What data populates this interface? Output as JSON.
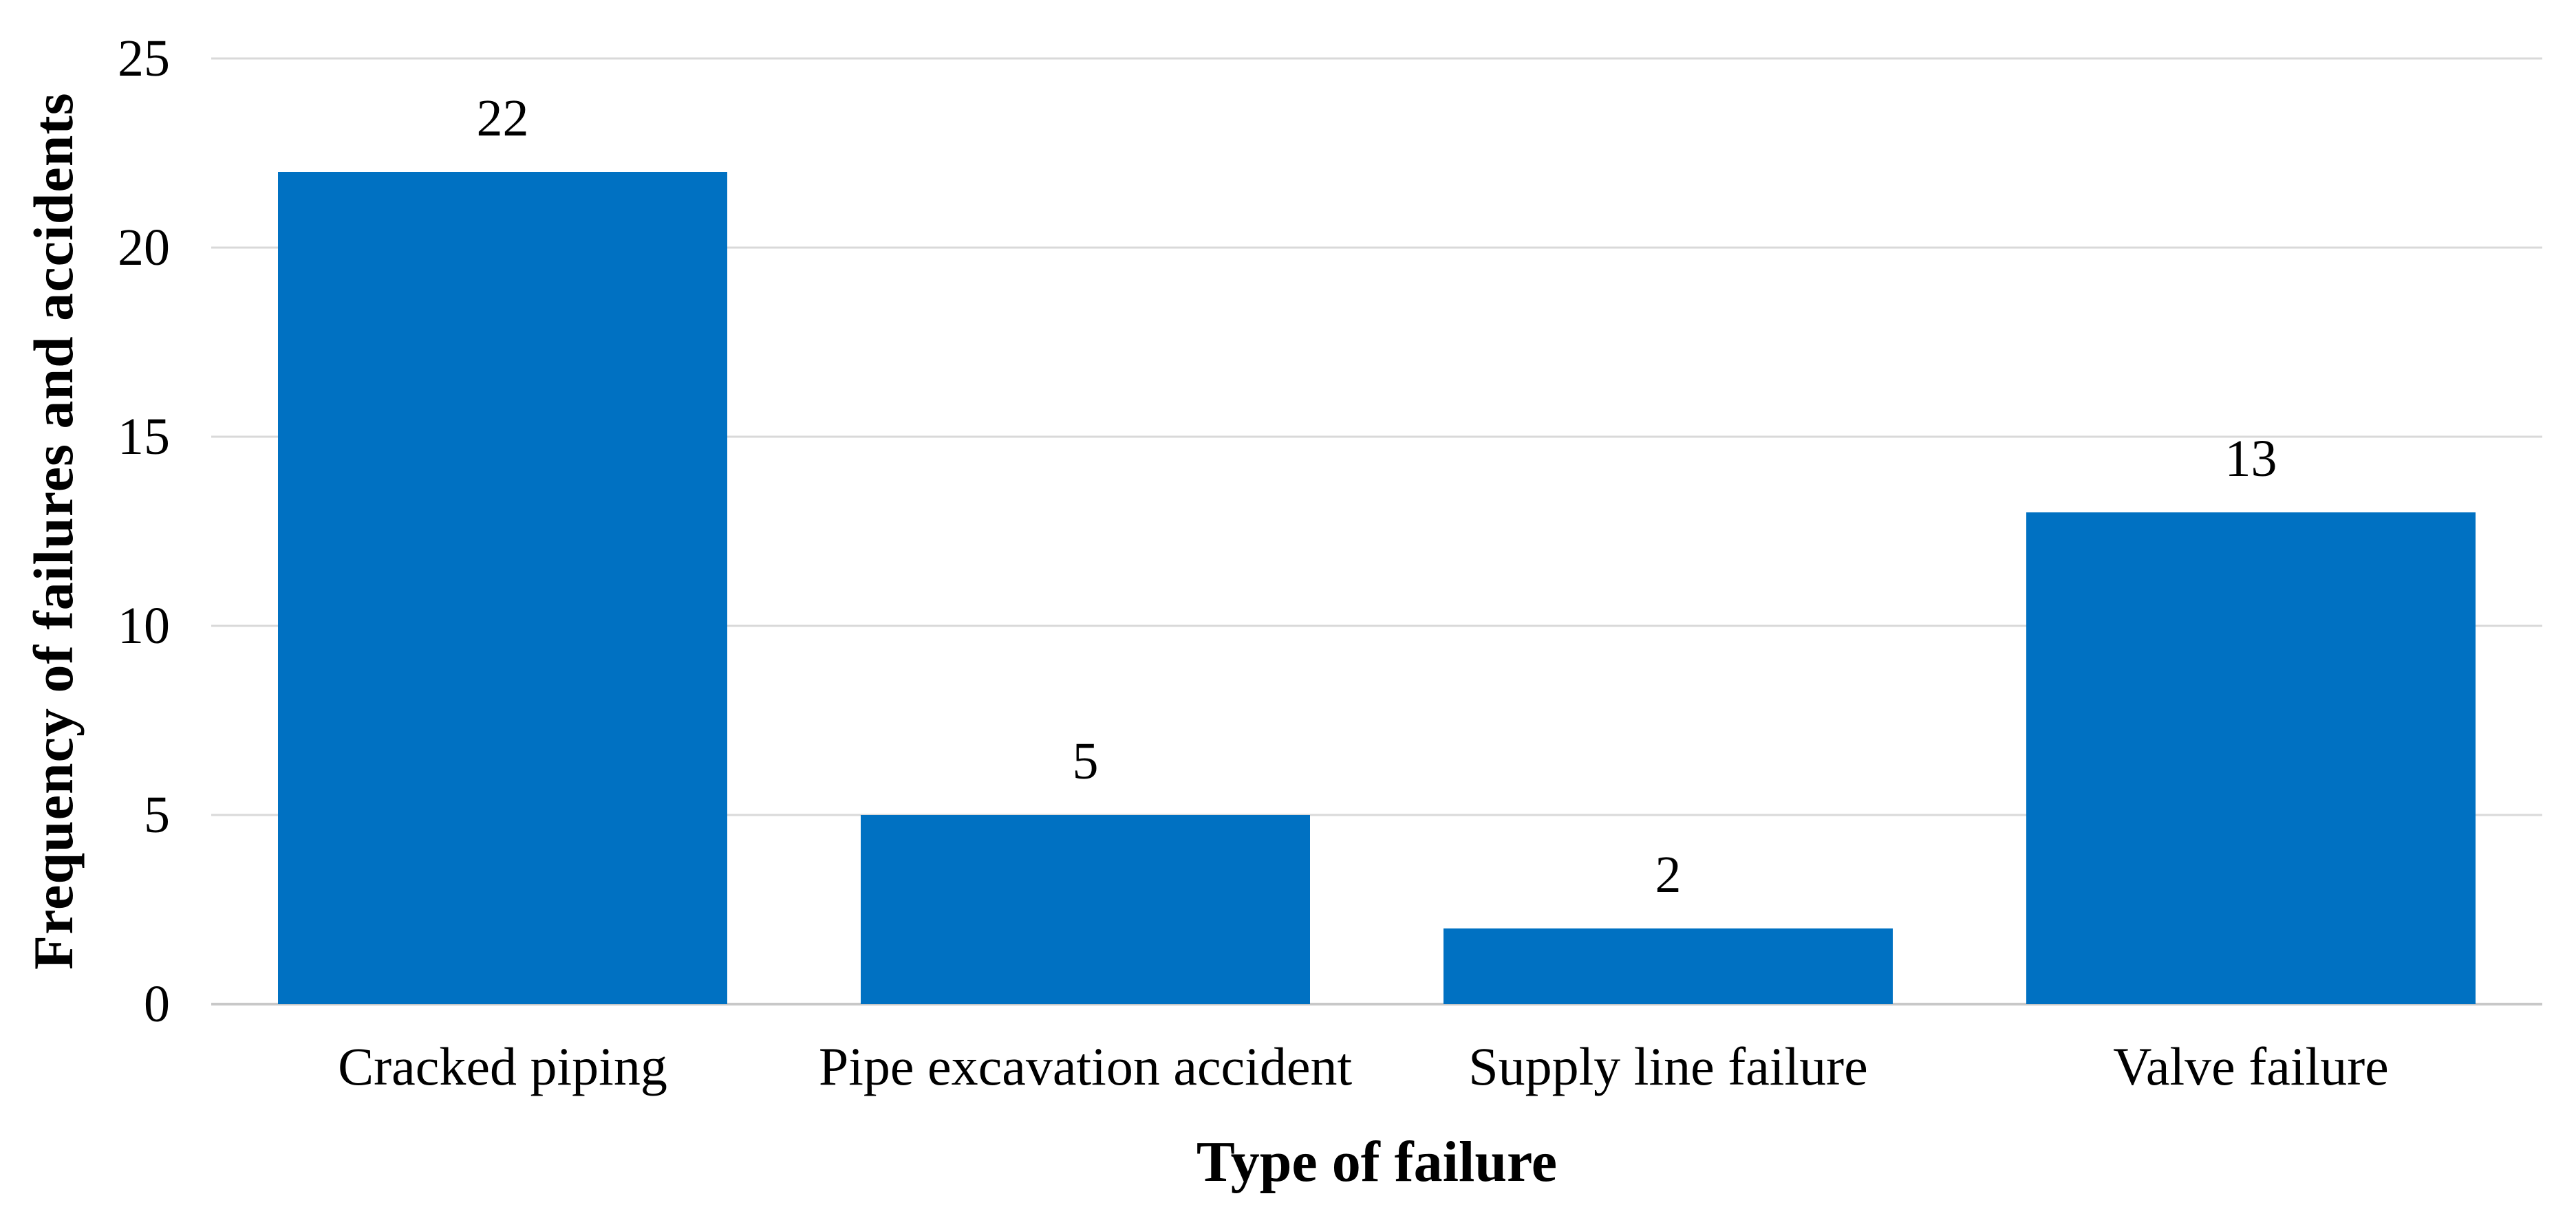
{
  "chart_data": {
    "type": "bar",
    "title": "",
    "categories": [
      "Cracked piping",
      "Pipe excavation accident",
      "Supply line failure",
      "Valve failure"
    ],
    "values": [
      22,
      5,
      2,
      13
    ],
    "data_labels": [
      "22",
      "5",
      "2",
      "13"
    ],
    "xlabel": "Type of failure",
    "ylabel": "Frequency of failures and accidents",
    "ylim": [
      0,
      25
    ],
    "yticks": [
      0,
      5,
      10,
      15,
      20,
      25
    ],
    "grid": true,
    "legend_position": "none",
    "bar_color": "#0071c2",
    "gridline_color": "#d9d9d9",
    "axis_line_color": "#c8c8c8",
    "text_color": "#000000"
  }
}
